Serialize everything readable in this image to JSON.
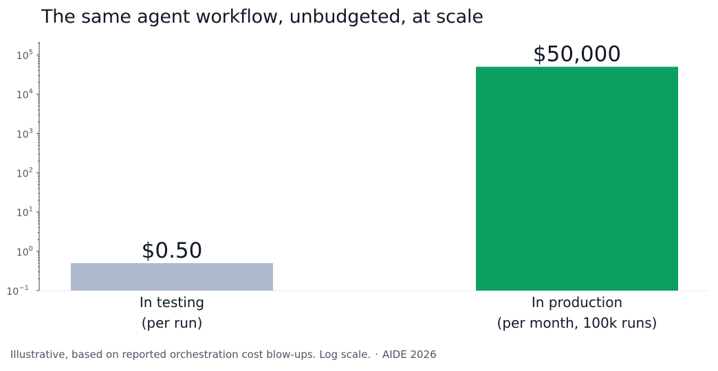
{
  "colors": {
    "testing_bar": "#aeb9d0",
    "production_bar": "#0c9f62",
    "text": "#111827",
    "axis": "#4b5563"
  },
  "chart_data": {
    "type": "bar",
    "title": "The same agent workflow, unbudgeted, at scale",
    "y_scale": "log",
    "ylim": [
      0.1,
      150000
    ],
    "y_ticks": [
      {
        "value": 0.1,
        "base": "10",
        "exp": "−1"
      },
      {
        "value": 1,
        "base": "10",
        "exp": "0"
      },
      {
        "value": 10,
        "base": "10",
        "exp": "1"
      },
      {
        "value": 100,
        "base": "10",
        "exp": "2"
      },
      {
        "value": 1000,
        "base": "10",
        "exp": "3"
      },
      {
        "value": 10000,
        "base": "10",
        "exp": "4"
      },
      {
        "value": 100000,
        "base": "10",
        "exp": "5"
      }
    ],
    "grid": false,
    "categories": [
      {
        "line1": "In testing",
        "line2": "(per run)"
      },
      {
        "line1": "In production",
        "line2": "(per month, 100k runs)"
      }
    ],
    "values": [
      0.5,
      50000
    ],
    "data_labels": [
      "$0.50",
      "$50,000"
    ]
  },
  "footer": {
    "note": "Illustrative, based on reported orchestration cost blow-ups. Log scale.",
    "separator": "·",
    "source": "AIDE 2026"
  }
}
